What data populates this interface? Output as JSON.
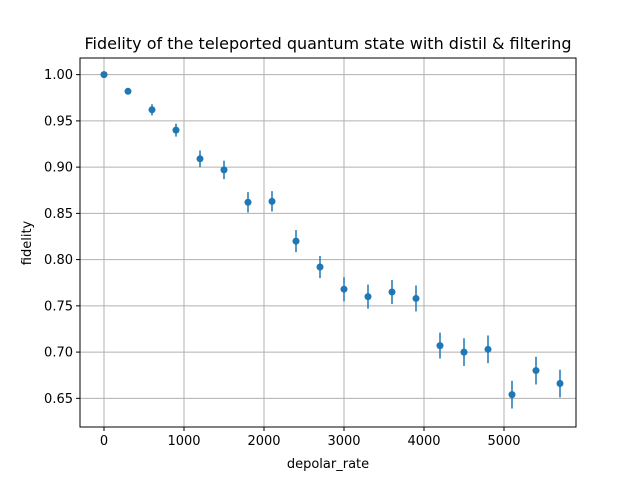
{
  "chart_data": {
    "type": "scatter",
    "title": "Fidelity of the teleported quantum state with distil & filtering",
    "xlabel": "depolar_rate",
    "ylabel": "fidelity",
    "xlim": [
      -300,
      5900
    ],
    "ylim": [
      0.619,
      1.018
    ],
    "grid": true,
    "color": "#1f77b4",
    "xticks": [
      0,
      1000,
      2000,
      3000,
      4000,
      5000
    ],
    "yticks": [
      0.65,
      0.7,
      0.75,
      0.8,
      0.85,
      0.9,
      0.95,
      1.0
    ],
    "xtick_labels": [
      "0",
      "1000",
      "2000",
      "3000",
      "4000",
      "5000"
    ],
    "ytick_labels": [
      "0.65",
      "0.70",
      "0.75",
      "0.80",
      "0.85",
      "0.90",
      "0.95",
      "1.00"
    ],
    "series": [
      {
        "points": [
          {
            "x": 0,
            "y": 1.0,
            "err": 0.0015
          },
          {
            "x": 300,
            "y": 0.982,
            "err": 0.003
          },
          {
            "x": 600,
            "y": 0.962,
            "err": 0.006
          },
          {
            "x": 900,
            "y": 0.94,
            "err": 0.007
          },
          {
            "x": 1200,
            "y": 0.909,
            "err": 0.009
          },
          {
            "x": 1500,
            "y": 0.897,
            "err": 0.01
          },
          {
            "x": 1800,
            "y": 0.862,
            "err": 0.011
          },
          {
            "x": 2100,
            "y": 0.863,
            "err": 0.011
          },
          {
            "x": 2400,
            "y": 0.82,
            "err": 0.012
          },
          {
            "x": 2700,
            "y": 0.792,
            "err": 0.012
          },
          {
            "x": 3000,
            "y": 0.768,
            "err": 0.013
          },
          {
            "x": 3300,
            "y": 0.76,
            "err": 0.013
          },
          {
            "x": 3600,
            "y": 0.765,
            "err": 0.013
          },
          {
            "x": 3900,
            "y": 0.758,
            "err": 0.014
          },
          {
            "x": 4200,
            "y": 0.707,
            "err": 0.014
          },
          {
            "x": 4500,
            "y": 0.7,
            "err": 0.015
          },
          {
            "x": 4800,
            "y": 0.703,
            "err": 0.015
          },
          {
            "x": 5100,
            "y": 0.654,
            "err": 0.015
          },
          {
            "x": 5400,
            "y": 0.68,
            "err": 0.015
          },
          {
            "x": 5700,
            "y": 0.666,
            "err": 0.015
          }
        ]
      }
    ]
  }
}
